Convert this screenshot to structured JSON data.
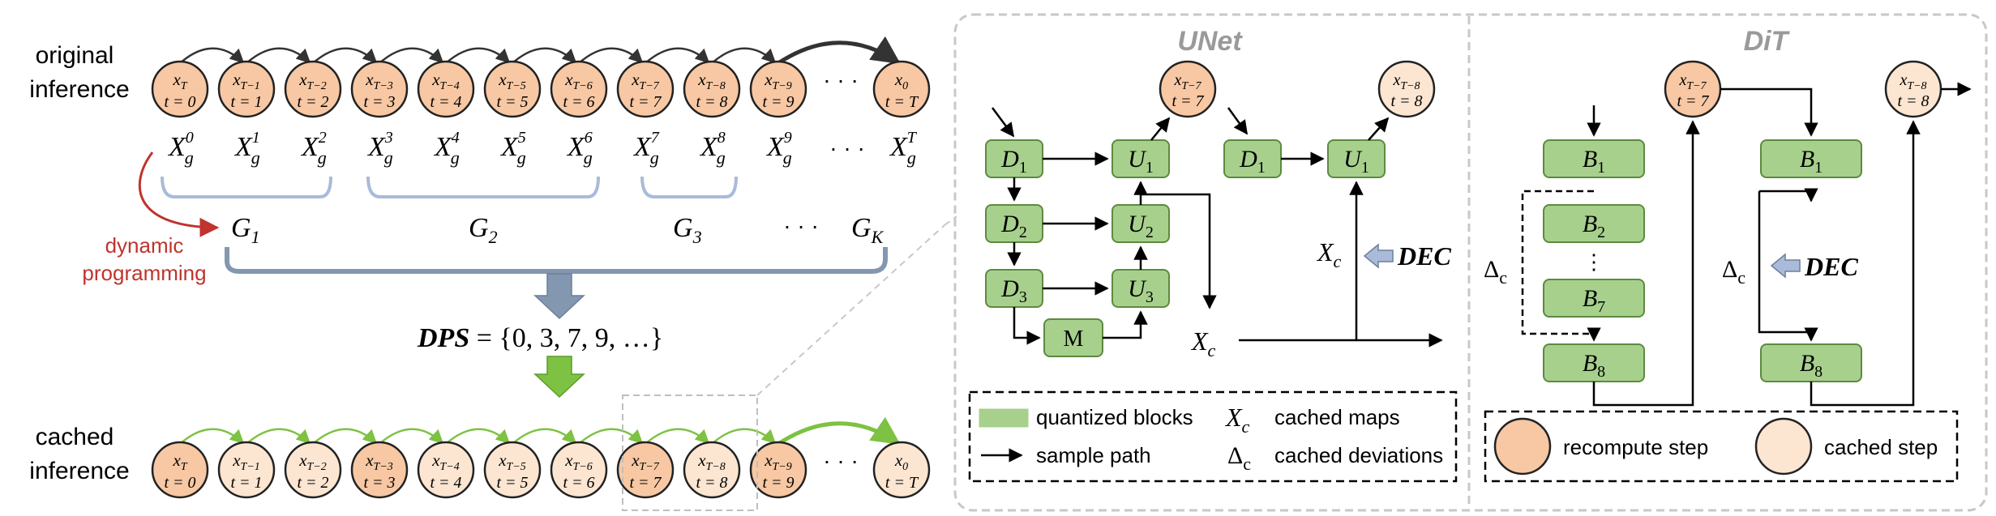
{
  "colors": {
    "recompute": "#f7c8a3",
    "cached": "#fce6d2",
    "block_fill": "#a8d08d",
    "block_stroke": "#5d8a3f",
    "green_arrow": "#7dc242",
    "group_bracket": "#a9bbd9",
    "big_bracket": "#8497b0",
    "dp_arrow": "#c0332e",
    "down_arrow_gray": "#8497b0",
    "down_arrow_green": "#7dc242",
    "panel_border": "#c8c8c8",
    "dec_arrow": "#a9bbd9"
  },
  "left": {
    "original_label": [
      "original",
      "inference"
    ],
    "cached_label": [
      "cached",
      "inference"
    ],
    "original_nodes": [
      {
        "x": "x",
        "sub": "T",
        "t": "t = 0",
        "type": "recompute"
      },
      {
        "x": "x",
        "sub": "T−1",
        "t": "t = 1",
        "type": "recompute"
      },
      {
        "x": "x",
        "sub": "T−2",
        "t": "t = 2",
        "type": "recompute"
      },
      {
        "x": "x",
        "sub": "T−3",
        "t": "t = 3",
        "type": "recompute"
      },
      {
        "x": "x",
        "sub": "T−4",
        "t": "t = 4",
        "type": "recompute"
      },
      {
        "x": "x",
        "sub": "T−5",
        "t": "t = 5",
        "type": "recompute"
      },
      {
        "x": "x",
        "sub": "T−6",
        "t": "t = 6",
        "type": "recompute"
      },
      {
        "x": "x",
        "sub": "T−7",
        "t": "t = 7",
        "type": "recompute"
      },
      {
        "x": "x",
        "sub": "T−8",
        "t": "t = 8",
        "type": "recompute"
      },
      {
        "x": "x",
        "sub": "T−9",
        "t": "t = 9",
        "type": "recompute"
      }
    ],
    "original_last": {
      "x": "x",
      "sub": "0",
      "t": "t = T",
      "type": "recompute"
    },
    "cached_nodes": [
      {
        "x": "x",
        "sub": "T",
        "t": "t = 0",
        "type": "recompute"
      },
      {
        "x": "x",
        "sub": "T−1",
        "t": "t = 1",
        "type": "cached"
      },
      {
        "x": "x",
        "sub": "T−2",
        "t": "t = 2",
        "type": "cached"
      },
      {
        "x": "x",
        "sub": "T−3",
        "t": "t = 3",
        "type": "recompute"
      },
      {
        "x": "x",
        "sub": "T−4",
        "t": "t = 4",
        "type": "cached"
      },
      {
        "x": "x",
        "sub": "T−5",
        "t": "t = 5",
        "type": "cached"
      },
      {
        "x": "x",
        "sub": "T−6",
        "t": "t = 6",
        "type": "cached"
      },
      {
        "x": "x",
        "sub": "T−7",
        "t": "t = 7",
        "type": "recompute"
      },
      {
        "x": "x",
        "sub": "T−8",
        "t": "t = 8",
        "type": "cached"
      },
      {
        "x": "x",
        "sub": "T−9",
        "t": "t = 9",
        "type": "recompute"
      }
    ],
    "cached_last": {
      "x": "x",
      "sub": "0",
      "t": "t = T",
      "type": "cached"
    },
    "ellipsis": "· · ·",
    "xg_labels": [
      {
        "base": "X",
        "sub": "g",
        "sup": "0"
      },
      {
        "base": "X",
        "sub": "g",
        "sup": "1"
      },
      {
        "base": "X",
        "sub": "g",
        "sup": "2"
      },
      {
        "base": "X",
        "sub": "g",
        "sup": "3"
      },
      {
        "base": "X",
        "sub": "g",
        "sup": "4"
      },
      {
        "base": "X",
        "sub": "g",
        "sup": "5"
      },
      {
        "base": "X",
        "sub": "g",
        "sup": "6"
      },
      {
        "base": "X",
        "sub": "g",
        "sup": "7"
      },
      {
        "base": "X",
        "sub": "g",
        "sup": "8"
      },
      {
        "base": "X",
        "sub": "g",
        "sup": "9"
      }
    ],
    "xg_last": {
      "base": "X",
      "sub": "g",
      "sup": "T"
    },
    "groups": [
      {
        "base": "G",
        "sub": "1"
      },
      {
        "base": "G",
        "sub": "2"
      },
      {
        "base": "G",
        "sub": "3"
      },
      {
        "base": "G",
        "sub": "K"
      }
    ],
    "dp_label": [
      "dynamic",
      "programming"
    ],
    "dps": {
      "name": "DPS",
      "value": " = {0, 3, 7, 9, …}"
    }
  },
  "unet": {
    "title": "UNet",
    "blocks": {
      "d1": "D",
      "d2": "D",
      "d3": "D",
      "u1": "U",
      "u2": "U",
      "u3": "U",
      "m": "M"
    },
    "subs": {
      "d1": "1",
      "d2": "2",
      "d3": "3",
      "u1": "1",
      "u2": "2",
      "u3": "3"
    },
    "node_t7": {
      "sub": "T−7",
      "t": "t = 7"
    },
    "node_t8": {
      "sub": "T−8",
      "t": "t = 8"
    },
    "xc": {
      "base": "X",
      "sub": "c"
    },
    "dec": "DEC"
  },
  "dit": {
    "title": "DiT",
    "blocks": [
      "B",
      "B",
      "B",
      "B"
    ],
    "block_subs": [
      "1",
      "2",
      "7",
      "8"
    ],
    "node_t7": {
      "sub": "T−7",
      "t": "t = 7"
    },
    "node_t8": {
      "sub": "T−8",
      "t": "t = 8"
    },
    "delta": {
      "base": "Δ",
      "sub": "c"
    },
    "dec": "DEC"
  },
  "legend": {
    "quantized": "quantized blocks",
    "sample_path": "sample path",
    "xc_label": "cached maps",
    "delta_label": "cached deviations",
    "recompute": "recompute step",
    "cached": "cached step"
  }
}
